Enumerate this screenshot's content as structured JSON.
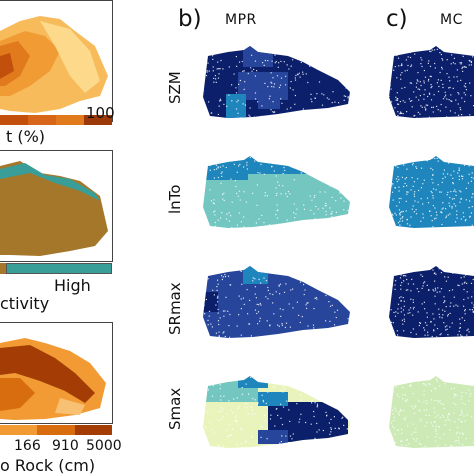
{
  "panels": {
    "b": {
      "letter": "b)",
      "title": "MPR"
    },
    "c": {
      "letter": "c)",
      "title": "MC"
    }
  },
  "row_labels": [
    "SZM",
    "lnTo",
    "SRmax",
    "Smax"
  ],
  "left_column": {
    "map1": {
      "legend_suffix": "t (%)",
      "legend_end": "100",
      "colors": [
        "#c24f0c",
        "#e07a1c",
        "#f19b35",
        "#f8bb5c",
        "#fcd98b"
      ]
    },
    "map2": {
      "legend_high": "High",
      "legend_suffix": "ctivity",
      "colors": [
        "#a5772a",
        "#3a9e98"
      ]
    },
    "map3": {
      "legend_ticks": [
        "166",
        "910",
        "5000"
      ],
      "legend_suffix": "o Rock (cm)",
      "colors": [
        "#f7c072",
        "#f29a33",
        "#d86d10",
        "#a33d05"
      ]
    }
  },
  "map_colors": {
    "navy": "#0b1f6b",
    "blue": "#26459b",
    "mid": "#1f86bd",
    "teal": "#74c6c0",
    "light": "#cdeab6",
    "pale": "#e8f4bc"
  }
}
